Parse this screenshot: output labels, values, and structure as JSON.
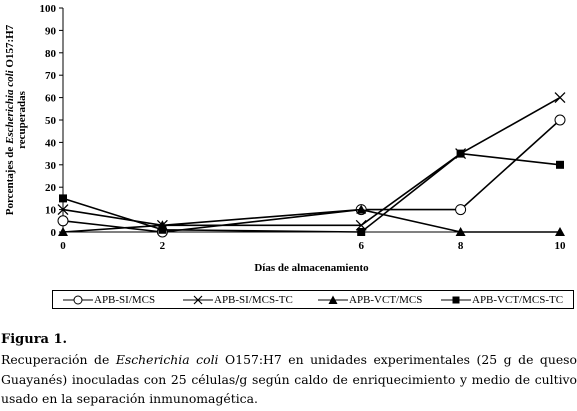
{
  "chart_data": {
    "type": "line",
    "title": "",
    "xlabel": "Días de almacenamiento",
    "ylabel_parts": [
      "Porcentajes de ",
      "Escherichia coli",
      " O157:H7"
    ],
    "ylabel_line2": "recuperadas",
    "x": [
      0,
      2,
      6,
      8,
      10
    ],
    "xlim": [
      0,
      10
    ],
    "ylim": [
      0,
      100
    ],
    "x_ticks": [
      "0",
      "2",
      "6",
      "8",
      "10"
    ],
    "y_ticks": [
      "0",
      "10",
      "20",
      "30",
      "40",
      "50",
      "60",
      "70",
      "80",
      "90",
      "100"
    ],
    "grid": false,
    "legend_position": "bottom",
    "series": [
      {
        "name": "APB-SI/MCS",
        "marker": "circle-open",
        "values": [
          5,
          0,
          10,
          10,
          50
        ]
      },
      {
        "name": "APB-SI/MCS-TC",
        "marker": "x",
        "values": [
          10,
          3,
          3,
          35,
          60
        ]
      },
      {
        "name": "APB-VCT/MCS",
        "marker": "triangle-filled",
        "values": [
          0,
          3,
          10,
          0,
          0
        ]
      },
      {
        "name": "APB-VCT/MCS-TC",
        "marker": "square-filled",
        "values": [
          15,
          1,
          0,
          35,
          30
        ]
      }
    ]
  },
  "caption": {
    "label": "Figura 1.",
    "text_parts": [
      "Recuperación de ",
      "Escherichia coli",
      " O157:H7 en unidades experimentales (25 g de queso Guayanés) inoculadas con 25 células/g según caldo de enriquecimiento y medio de cultivo usado en la separación inmunomagética."
    ]
  }
}
